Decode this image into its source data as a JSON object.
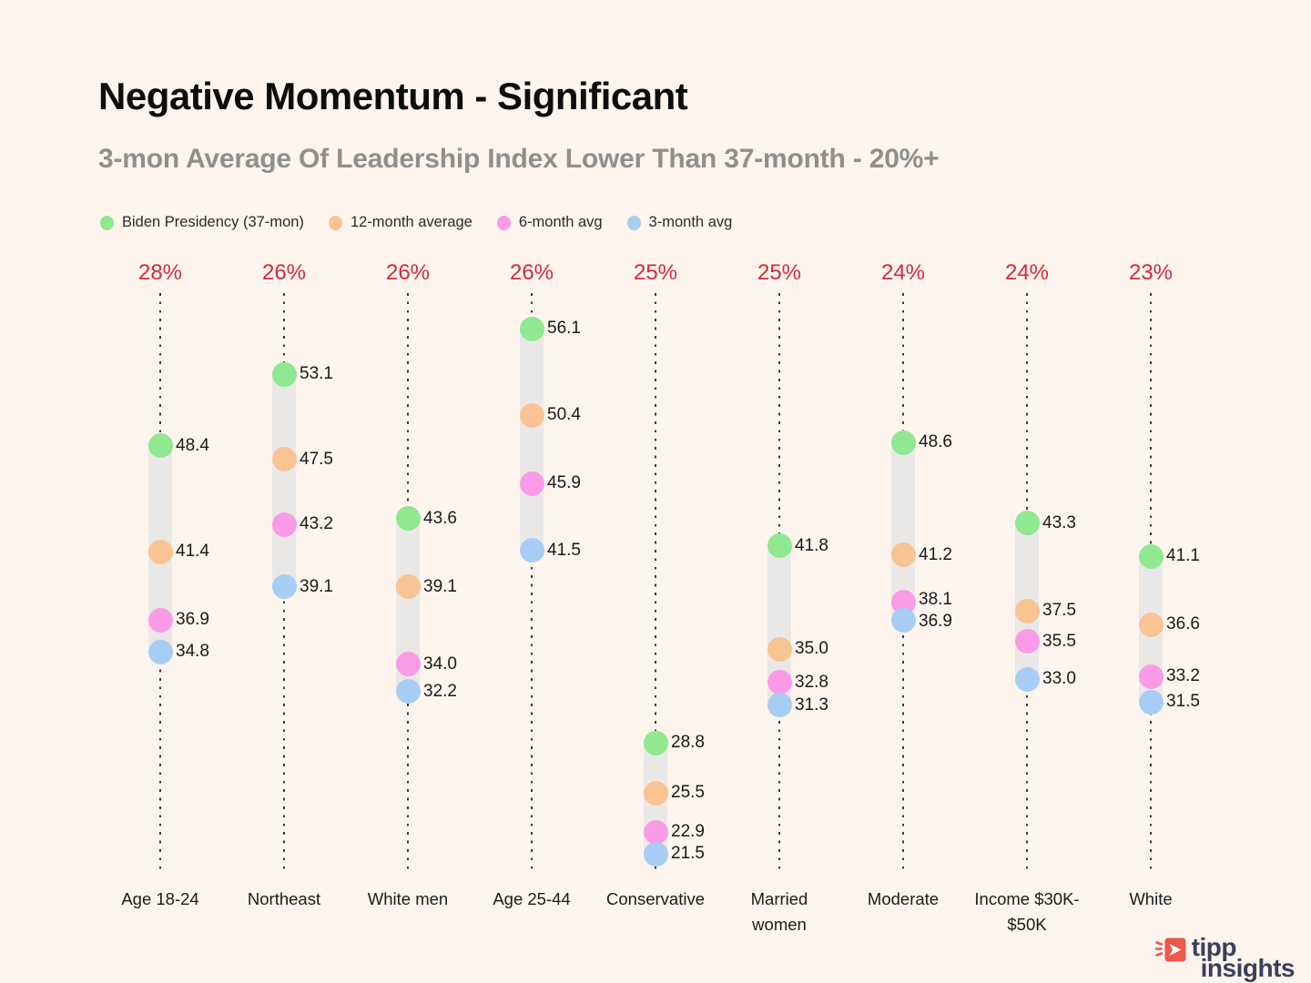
{
  "header": {
    "title": "Negative Momentum - Significant",
    "subtitle": "3-mon Average Of Leadership Index Lower Than 37-month - 20%+"
  },
  "legend": {
    "items": [
      {
        "label": "Biden Presidency (37-mon)",
        "color": "#90e890"
      },
      {
        "label": "12-month average",
        "color": "#f9c493"
      },
      {
        "label": "6-month avg",
        "color": "#f99be7"
      },
      {
        "label": "3-month avg",
        "color": "#a8cdf4"
      }
    ]
  },
  "chart_data": {
    "type": "scatter",
    "title": "Negative Momentum - Significant",
    "subtitle": "3-mon Average Of Leadership Index Lower Than 37-month - 20%+",
    "legend_position": "top",
    "grid": "dotted-vertical-lines",
    "value_range": [
      20.2,
      58.3
    ],
    "categories": [
      "Age 18-24",
      "Northeast",
      "White men",
      "Age 25-44",
      "Conservative",
      "Married women",
      "Moderate",
      "Income $30K-$50K",
      "White"
    ],
    "category_display": [
      "Age 18-24",
      "Northeast",
      "White men",
      "Age 25-44",
      "Conservative",
      "Married\nwomen",
      "Moderate",
      "Income $30K-\n$50K",
      "White"
    ],
    "pct_labels": [
      "28%",
      "26%",
      "26%",
      "26%",
      "25%",
      "25%",
      "24%",
      "24%",
      "23%"
    ],
    "series": [
      {
        "name": "Biden Presidency (37-mon)",
        "color": "#90e890",
        "values": [
          48.4,
          53.1,
          43.6,
          56.1,
          28.8,
          41.8,
          48.6,
          43.3,
          41.1
        ]
      },
      {
        "name": "12-month average",
        "color": "#f9c493",
        "values": [
          41.4,
          47.5,
          39.1,
          50.4,
          25.5,
          35.0,
          41.2,
          37.5,
          36.6
        ]
      },
      {
        "name": "6-month avg",
        "color": "#f99be7",
        "values": [
          36.9,
          43.2,
          34.0,
          45.9,
          22.9,
          32.8,
          38.1,
          35.5,
          33.2
        ]
      },
      {
        "name": "3-month avg",
        "color": "#a8cdf4",
        "values": [
          34.8,
          39.1,
          32.2,
          41.5,
          21.5,
          31.3,
          36.9,
          33.0,
          31.5
        ]
      }
    ]
  },
  "logo": {
    "word1": "tipp",
    "word2": "insights"
  },
  "colors": {
    "background": "#fdf4ed",
    "title": "#0d0d0d",
    "subtitle": "#8f8f8f",
    "pct_label": "#d12b3a",
    "value_label": "#1a1a1a",
    "band": "#eae8e7",
    "dotted_line": "#3c3c3c",
    "logo_navy": "#3b3f5e",
    "logo_red": "#e9594c"
  }
}
